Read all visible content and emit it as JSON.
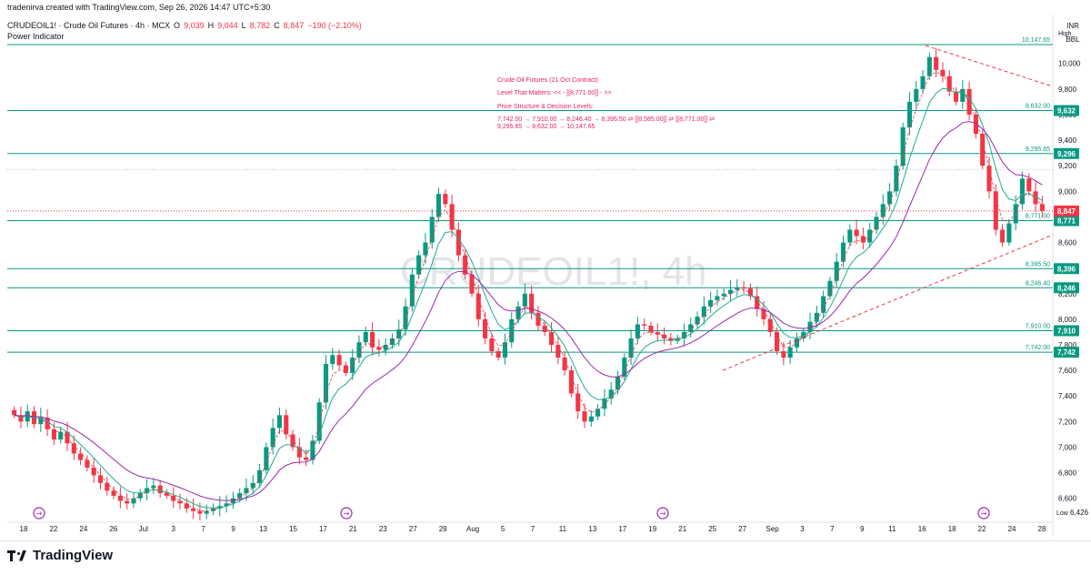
{
  "header": {
    "credit": "tradenirva created with TradingView.com, Sep 26, 2026 14:47 UTC+5:30",
    "symbol": "CRUDEOIL1! · Crude Oil Futures · 4h · MCX",
    "ohlc": {
      "o_label": "O",
      "o": "9,039",
      "h_label": "H",
      "h": "9,044",
      "l_label": "L",
      "l": "8,782",
      "c_label": "C",
      "c": "8,847",
      "change": "−190 (−2.10%)"
    },
    "indicator": "Power Indicator"
  },
  "price_scale": {
    "currency": "INR",
    "unit": "BBL",
    "high_label": "High",
    "low_label": "Low",
    "low_value": "6,426"
  },
  "watermark": "CRUDEOIL1!, 4h",
  "annotation": {
    "title": "Crude Oil Futures (21 Oct Contract)",
    "level_line": "Level That Matters: << - [[8,771.00]] - >>",
    "structure_title": "Price Structure & Decision Levels:",
    "structure_line1": "7,742.00 → 7,910.00 → 8,246.40 → 8,395.50 ⇄ [[8,585.00]] ⇄ [[8,771.00]] ⇄",
    "structure_line2": "9,295.65 → 9,632.00 → 10,147.65"
  },
  "footer": {
    "brand": "TradingView"
  },
  "colors": {
    "level": "#089981",
    "up": "#089981",
    "down": "#f23645",
    "ema_fast": "#f23645",
    "ema_mid": "#22ab94",
    "ema_slow": "#9c27b0",
    "trend": "#f23645",
    "annotation": "#e91e63",
    "current_price": "#f23645"
  },
  "chart_data": {
    "type": "candlestick",
    "y_ticks": [
      6600,
      6800,
      7000,
      7200,
      7400,
      7600,
      7800,
      8000,
      8200,
      8400,
      8600,
      8800,
      9000,
      9200,
      9400,
      9600,
      9800,
      10000
    ],
    "ylim": [
      6420,
      10240
    ],
    "x_ticks": [
      "18",
      "22",
      "24",
      "26",
      "Jul",
      "3",
      "7",
      "9",
      "13",
      "15",
      "17",
      "21",
      "23",
      "27",
      "29",
      "Aug",
      "5",
      "7",
      "11",
      "13",
      "17",
      "19",
      "21",
      "25",
      "27",
      "Sep",
      "3",
      "7",
      "9",
      "11",
      "16",
      "18",
      "22",
      "24",
      "28"
    ],
    "levels": [
      {
        "value": 10147.65,
        "label": "10,147.65"
      },
      {
        "value": 9632.0,
        "label": "9,632.00",
        "badge": "9,632"
      },
      {
        "value": 9295.65,
        "label": "9,295.65",
        "badge": "9,296"
      },
      {
        "value": 8771.0,
        "label": "8,771.00",
        "badge": "8,771"
      },
      {
        "value": 8395.5,
        "label": "8,395.50",
        "badge": "8,396"
      },
      {
        "value": 8246.4,
        "label": "8,246.40",
        "badge": "8,246"
      },
      {
        "value": 7910.0,
        "label": "7,910.00",
        "badge": "7,910"
      },
      {
        "value": 7742.0,
        "label": "7,742.00",
        "badge": "7,742"
      }
    ],
    "current_price": {
      "value": 8847,
      "label": "8,847"
    },
    "dotted_level": 9170,
    "trendlines": [
      {
        "from": [
          "Aug 26",
          7600
        ],
        "to": [
          "Sep 28",
          8660
        ]
      },
      {
        "from": [
          "Sep 16",
          10140
        ],
        "to": [
          "Sep 28",
          9820
        ]
      }
    ],
    "closes": [
      7250,
      7200,
      7280,
      7180,
      7230,
      7140,
      7060,
      7120,
      7030,
      6950,
      6900,
      6840,
      6780,
      6720,
      6660,
      6620,
      6580,
      6560,
      6600,
      6640,
      6680,
      6700,
      6640,
      6620,
      6580,
      6560,
      6520,
      6500,
      6480,
      6500,
      6520,
      6540,
      6560,
      6600,
      6640,
      6680,
      6720,
      6820,
      7000,
      7150,
      7250,
      7100,
      7000,
      6920,
      6900,
      7050,
      7350,
      7650,
      7720,
      7640,
      7580,
      7700,
      7820,
      7900,
      7780,
      7760,
      7800,
      7850,
      7920,
      8100,
      8350,
      8500,
      8600,
      8800,
      8980,
      8900,
      8700,
      8500,
      8350,
      8200,
      8000,
      7850,
      7750,
      7700,
      7820,
      8000,
      8100,
      8200,
      8050,
      7950,
      7900,
      7800,
      7700,
      7600,
      7420,
      7280,
      7200,
      7240,
      7300,
      7380,
      7450,
      7550,
      7700,
      7850,
      7960,
      7950,
      7900,
      7880,
      7850,
      7830,
      7850,
      7900,
      7960,
      8020,
      8100,
      8150,
      8180,
      8200,
      8230,
      8250,
      8240,
      8180,
      8080,
      8000,
      7900,
      7750,
      7700,
      7780,
      7850,
      7900,
      7980,
      8050,
      8180,
      8300,
      8450,
      8600,
      8700,
      8650,
      8600,
      8700,
      8800,
      8900,
      9000,
      9200,
      9500,
      9700,
      9800,
      9900,
      10050,
      9950,
      9900,
      9780,
      9700,
      9800,
      9600,
      9450,
      9200,
      9000,
      8700,
      8600,
      8750,
      8900,
      9100,
      9000,
      8900,
      8847
    ],
    "annotations": {
      "high": "10,147.65",
      "low": "6,426"
    }
  }
}
